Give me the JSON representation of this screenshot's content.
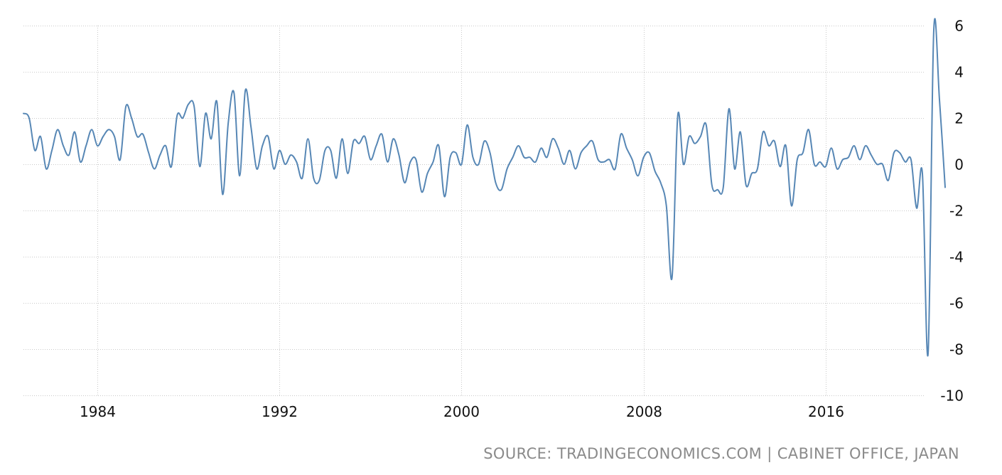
{
  "source_text": "SOURCE: TRADINGECONOMICS.COM | CABINET OFFICE, JAPAN",
  "colors": {
    "line": "#5787b5",
    "grid": "#c9c9c9",
    "text": "#111111",
    "source": "#8a8a8a"
  },
  "chart_data": {
    "type": "line",
    "title": "",
    "xlabel": "",
    "ylabel": "",
    "xlim": [
      1980.75,
      2021.25
    ],
    "ylim": [
      -10,
      6
    ],
    "x_ticks": [
      1984,
      1992,
      2000,
      2008,
      2016
    ],
    "x_tick_labels": [
      "1984",
      "1992",
      "2000",
      "2008",
      "2016"
    ],
    "y_ticks": [
      6,
      4,
      2,
      0,
      -2,
      -4,
      -6,
      -8,
      -10
    ],
    "y_tick_labels": [
      "6",
      "4",
      "2",
      "0",
      "-2",
      "-4",
      "-6",
      "-8",
      "-10"
    ],
    "grid": true,
    "legend": "none",
    "series": [
      {
        "x": [
          1980.75,
          1981.0,
          1981.25,
          1981.5,
          1981.75,
          1982.0,
          1982.25,
          1982.5,
          1982.75,
          1983.0,
          1983.25,
          1983.5,
          1983.75,
          1984.0,
          1984.25,
          1984.5,
          1984.75,
          1985.0,
          1985.25,
          1985.5,
          1985.75,
          1986.0,
          1986.25,
          1986.5,
          1986.75,
          1987.0,
          1987.25,
          1987.5,
          1987.75,
          1988.0,
          1988.25,
          1988.5,
          1988.75,
          1989.0,
          1989.25,
          1989.5,
          1989.75,
          1990.0,
          1990.25,
          1990.5,
          1990.75,
          1991.0,
          1991.25,
          1991.5,
          1991.75,
          1992.0,
          1992.25,
          1992.5,
          1992.75,
          1993.0,
          1993.25,
          1993.5,
          1993.75,
          1994.0,
          1994.25,
          1994.5,
          1994.75,
          1995.0,
          1995.25,
          1995.5,
          1995.75,
          1996.0,
          1996.25,
          1996.5,
          1996.75,
          1997.0,
          1997.25,
          1997.5,
          1997.75,
          1998.0,
          1998.25,
          1998.5,
          1998.75,
          1999.0,
          1999.25,
          1999.5,
          1999.75,
          2000.0,
          2000.25,
          2000.5,
          2000.75,
          2001.0,
          2001.25,
          2001.5,
          2001.75,
          2002.0,
          2002.25,
          2002.5,
          2002.75,
          2003.0,
          2003.25,
          2003.5,
          2003.75,
          2004.0,
          2004.25,
          2004.5,
          2004.75,
          2005.0,
          2005.25,
          2005.5,
          2005.75,
          2006.0,
          2006.25,
          2006.5,
          2006.75,
          2007.0,
          2007.25,
          2007.5,
          2007.75,
          2008.0,
          2008.25,
          2008.5,
          2008.75,
          2009.0,
          2009.25,
          2009.5,
          2009.75,
          2010.0,
          2010.25,
          2010.5,
          2010.75,
          2011.0,
          2011.25,
          2011.5,
          2011.75,
          2012.0,
          2012.25,
          2012.5,
          2012.75,
          2013.0,
          2013.25,
          2013.5,
          2013.75,
          2014.0,
          2014.25,
          2014.5,
          2014.75,
          2015.0,
          2015.25,
          2015.5,
          2015.75,
          2016.0,
          2016.25,
          2016.5,
          2016.75,
          2017.0,
          2017.25,
          2017.5,
          2017.75,
          2018.0,
          2018.25,
          2018.5,
          2018.75,
          2019.0,
          2019.25,
          2019.5,
          2019.75,
          2020.0,
          2020.25,
          2020.5,
          2020.75,
          2021.0,
          2021.25
        ],
        "values": [
          2.2,
          2.0,
          0.6,
          1.2,
          -0.2,
          0.6,
          1.5,
          0.8,
          0.4,
          1.4,
          0.1,
          0.8,
          1.5,
          0.8,
          1.2,
          1.5,
          1.2,
          0.2,
          2.5,
          2.0,
          1.2,
          1.3,
          0.5,
          -0.2,
          0.4,
          0.8,
          -0.1,
          2.1,
          2.0,
          2.6,
          2.5,
          -0.1,
          2.2,
          1.1,
          2.7,
          -1.3,
          1.8,
          3.1,
          -0.5,
          3.2,
          1.6,
          -0.2,
          0.8,
          1.2,
          -0.2,
          0.6,
          0.0,
          0.4,
          0.1,
          -0.6,
          1.1,
          -0.6,
          -0.7,
          0.6,
          0.6,
          -0.6,
          1.1,
          -0.4,
          1.0,
          0.9,
          1.2,
          0.2,
          0.8,
          1.3,
          0.1,
          1.1,
          0.4,
          -0.8,
          0.1,
          0.2,
          -1.2,
          -0.4,
          0.1,
          0.8,
          -1.4,
          0.3,
          0.5,
          0.0,
          1.7,
          0.3,
          0.0,
          1.0,
          0.5,
          -0.8,
          -1.1,
          -0.2,
          0.3,
          0.8,
          0.3,
          0.3,
          0.1,
          0.7,
          0.3,
          1.1,
          0.7,
          0.0,
          0.6,
          -0.2,
          0.5,
          0.8,
          1.0,
          0.2,
          0.1,
          0.2,
          -0.2,
          1.3,
          0.7,
          0.2,
          -0.5,
          0.3,
          0.5,
          -0.3,
          -0.8,
          -1.8,
          -4.9,
          2.1,
          0.0,
          1.2,
          0.9,
          1.2,
          1.7,
          -0.9,
          -1.1,
          -1.0,
          2.4,
          -0.2,
          1.4,
          -0.9,
          -0.4,
          -0.2,
          1.4,
          0.8,
          1.0,
          -0.1,
          0.8,
          -1.8,
          0.2,
          0.5,
          1.5,
          0.0,
          0.1,
          -0.1,
          0.7,
          -0.2,
          0.2,
          0.3,
          0.8,
          0.2,
          0.8,
          0.4,
          0.0,
          0.0,
          -0.7,
          0.5,
          0.5,
          0.1,
          0.2,
          -1.9,
          -0.4,
          -8.2,
          5.8,
          2.8,
          -1.0
        ]
      }
    ]
  }
}
